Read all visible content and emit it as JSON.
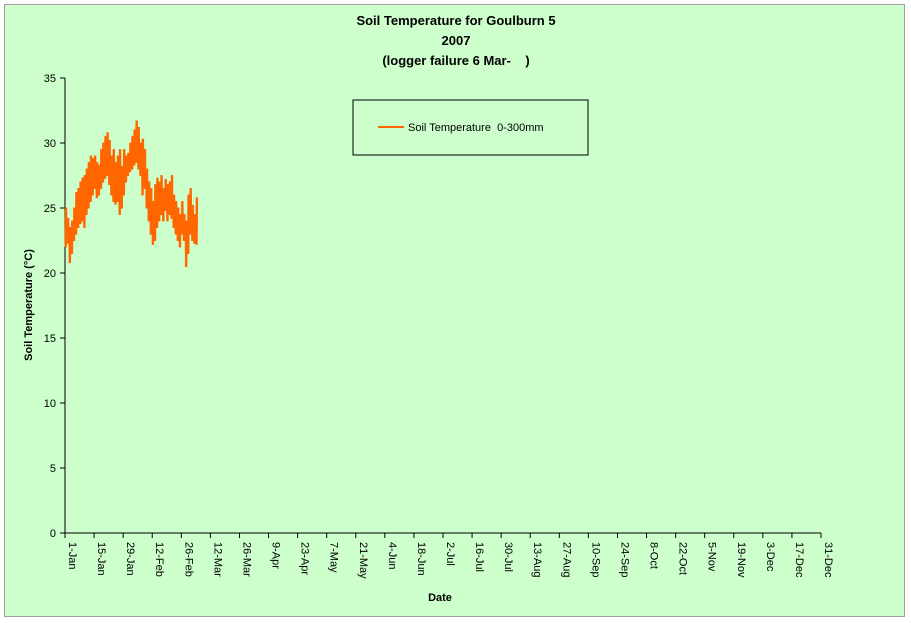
{
  "chart_data": {
    "type": "line",
    "title_lines": [
      "Soil Temperature for Goulburn 5",
      "2007",
      "(logger failure 6 Mar-    )"
    ],
    "xlabel": "Date",
    "ylabel": "Soil Temperature (°C)",
    "ylim": [
      0,
      35
    ],
    "y_ticks": [
      0,
      5,
      10,
      15,
      20,
      25,
      30,
      35
    ],
    "xlim_day_of_year": [
      1,
      365
    ],
    "x_ticks": [
      "1-Jan",
      "15-Jan",
      "29-Jan",
      "12-Feb",
      "26-Feb",
      "12-Mar",
      "26-Mar",
      "9-Apr",
      "23-Apr",
      "7-May",
      "21-May",
      "4-Jun",
      "18-Jun",
      "2-Jul",
      "16-Jul",
      "30-Jul",
      "13-Aug",
      "27-Aug",
      "10-Sep",
      "24-Sep",
      "8-Oct",
      "22-Oct",
      "5-Nov",
      "19-Nov",
      "3-Dec",
      "17-Dec",
      "31-Dec"
    ],
    "grid": false,
    "legend_position": "top-center",
    "series": [
      {
        "name": "Soil Temperature  0-300mm",
        "color": "#ff6600",
        "points": [
          {
            "date": "1-Jan",
            "min": 22.0,
            "max": 25.0
          },
          {
            "date": "2-Jan",
            "min": 22.3,
            "max": 24.2
          },
          {
            "date": "3-Jan",
            "min": 20.8,
            "max": 23.5
          },
          {
            "date": "4-Jan",
            "min": 21.5,
            "max": 24.0
          },
          {
            "date": "5-Jan",
            "min": 22.5,
            "max": 25.0
          },
          {
            "date": "6-Jan",
            "min": 23.0,
            "max": 26.2
          },
          {
            "date": "7-Jan",
            "min": 23.5,
            "max": 26.5
          },
          {
            "date": "8-Jan",
            "min": 23.8,
            "max": 27.0
          },
          {
            "date": "9-Jan",
            "min": 24.0,
            "max": 27.3
          },
          {
            "date": "10-Jan",
            "min": 23.5,
            "max": 27.5
          },
          {
            "date": "11-Jan",
            "min": 24.5,
            "max": 28.0
          },
          {
            "date": "12-Jan",
            "min": 25.0,
            "max": 28.5
          },
          {
            "date": "13-Jan",
            "min": 25.5,
            "max": 29.0
          },
          {
            "date": "14-Jan",
            "min": 26.0,
            "max": 28.8
          },
          {
            "date": "15-Jan",
            "min": 26.5,
            "max": 29.0
          },
          {
            "date": "16-Jan",
            "min": 25.8,
            "max": 28.5
          },
          {
            "date": "17-Jan",
            "min": 26.0,
            "max": 28.3
          },
          {
            "date": "18-Jan",
            "min": 26.5,
            "max": 29.5
          },
          {
            "date": "19-Jan",
            "min": 27.0,
            "max": 30.0
          },
          {
            "date": "20-Jan",
            "min": 27.3,
            "max": 30.5
          },
          {
            "date": "21-Jan",
            "min": 27.5,
            "max": 30.8
          },
          {
            "date": "22-Jan",
            "min": 26.8,
            "max": 30.2
          },
          {
            "date": "23-Jan",
            "min": 26.0,
            "max": 29.0
          },
          {
            "date": "24-Jan",
            "min": 25.5,
            "max": 29.5
          },
          {
            "date": "25-Jan",
            "min": 25.3,
            "max": 28.5
          },
          {
            "date": "26-Jan",
            "min": 25.5,
            "max": 29.0
          },
          {
            "date": "27-Jan",
            "min": 24.5,
            "max": 29.5
          },
          {
            "date": "28-Jan",
            "min": 25.0,
            "max": 28.2
          },
          {
            "date": "29-Jan",
            "min": 26.0,
            "max": 29.5
          },
          {
            "date": "30-Jan",
            "min": 27.0,
            "max": 29.0
          },
          {
            "date": "31-Jan",
            "min": 27.5,
            "max": 29.2
          },
          {
            "date": "1-Feb",
            "min": 27.8,
            "max": 30.0
          },
          {
            "date": "2-Feb",
            "min": 28.0,
            "max": 30.5
          },
          {
            "date": "3-Feb",
            "min": 28.3,
            "max": 31.0
          },
          {
            "date": "4-Feb",
            "min": 28.5,
            "max": 31.7
          },
          {
            "date": "5-Feb",
            "min": 28.0,
            "max": 31.2
          },
          {
            "date": "6-Feb",
            "min": 27.5,
            "max": 30.0
          },
          {
            "date": "7-Feb",
            "min": 26.0,
            "max": 30.3
          },
          {
            "date": "8-Feb",
            "min": 26.5,
            "max": 29.5
          },
          {
            "date": "9-Feb",
            "min": 25.0,
            "max": 28.0
          },
          {
            "date": "10-Feb",
            "min": 24.0,
            "max": 27.0
          },
          {
            "date": "11-Feb",
            "min": 23.0,
            "max": 26.5
          },
          {
            "date": "12-Feb",
            "min": 22.2,
            "max": 25.5
          },
          {
            "date": "13-Feb",
            "min": 22.5,
            "max": 26.8
          },
          {
            "date": "14-Feb",
            "min": 23.5,
            "max": 27.3
          },
          {
            "date": "15-Feb",
            "min": 24.0,
            "max": 27.0
          },
          {
            "date": "16-Feb",
            "min": 24.5,
            "max": 27.5
          },
          {
            "date": "17-Feb",
            "min": 24.0,
            "max": 26.5
          },
          {
            "date": "18-Feb",
            "min": 24.8,
            "max": 27.2
          },
          {
            "date": "19-Feb",
            "min": 24.0,
            "max": 26.8
          },
          {
            "date": "20-Feb",
            "min": 24.5,
            "max": 27.0
          },
          {
            "date": "21-Feb",
            "min": 24.2,
            "max": 27.5
          },
          {
            "date": "22-Feb",
            "min": 23.5,
            "max": 26.0
          },
          {
            "date": "23-Feb",
            "min": 23.0,
            "max": 25.5
          },
          {
            "date": "24-Feb",
            "min": 22.5,
            "max": 25.0
          },
          {
            "date": "25-Feb",
            "min": 22.0,
            "max": 24.5
          },
          {
            "date": "26-Feb",
            "min": 23.0,
            "max": 25.5
          },
          {
            "date": "27-Feb",
            "min": 22.5,
            "max": 24.5
          },
          {
            "date": "28-Feb",
            "min": 20.5,
            "max": 24.0
          },
          {
            "date": "1-Mar",
            "min": 21.5,
            "max": 26.0
          },
          {
            "date": "2-Mar",
            "min": 23.0,
            "max": 26.5
          },
          {
            "date": "3-Mar",
            "min": 22.5,
            "max": 25.2
          },
          {
            "date": "4-Mar",
            "min": 22.3,
            "max": 24.5
          },
          {
            "date": "5-Mar",
            "min": 22.2,
            "max": 25.8
          }
        ]
      }
    ]
  }
}
